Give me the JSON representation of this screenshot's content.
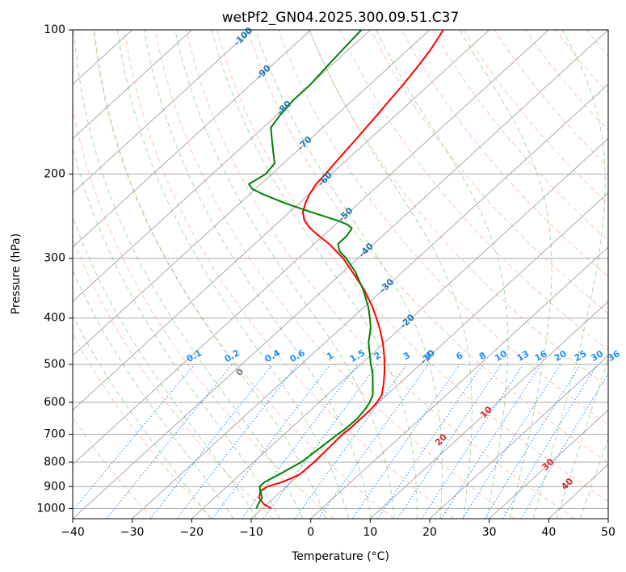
{
  "chart_data": {
    "type": "line",
    "subtype": "skew-t log-p diagram",
    "title": "wetPf2_GN04.2025.300.09.51.C37",
    "xlabel": "Temperature (°C)",
    "ylabel": "Pressure (hPa)",
    "xlim": [
      -40,
      50
    ],
    "ylim": [
      1050,
      100
    ],
    "x_ticks": [
      -40,
      -30,
      -20,
      -10,
      0,
      10,
      20,
      30,
      40,
      50
    ],
    "x_tick_labels": [
      "−40",
      "−30",
      "−20",
      "−10",
      "0",
      "10",
      "20",
      "30",
      "40",
      "50"
    ],
    "y_ticks": [
      100,
      200,
      300,
      400,
      500,
      600,
      700,
      800,
      900,
      1000
    ],
    "y_tick_labels": [
      "100",
      "200",
      "300",
      "400",
      "500",
      "600",
      "700",
      "800",
      "900",
      "1000"
    ],
    "grid": true,
    "colors": {
      "temperature": "#ff0000",
      "dewpoint": "#008000",
      "isotherm": "#aaaaaa",
      "dry_adiabat": "#ff7f50",
      "moist_adiabat": "#2ca02c",
      "mixing_ratio": "#1e90ff",
      "isotherm_label": "#1f77b4",
      "mixing_label": "#1e90ff",
      "moist_label": "#d62728",
      "zero_label": "#808080"
    },
    "series": [
      {
        "name": "Temperature",
        "pressure": [
          1000,
          980,
          950,
          920,
          900,
          880,
          850,
          800,
          750,
          700,
          680,
          650,
          620,
          600,
          580,
          550,
          520,
          500,
          480,
          450,
          420,
          400,
          380,
          350,
          320,
          300,
          280,
          270,
          260,
          250,
          240,
          230,
          220,
          210,
          200,
          190,
          180,
          170,
          160,
          150,
          140,
          130,
          120,
          110,
          100
        ],
        "values": [
          -8.5,
          -10.5,
          -12.5,
          -13.5,
          -13.2,
          -11.5,
          -10.0,
          -9.8,
          -10.0,
          -10.2,
          -10.0,
          -10.0,
          -10.0,
          -10.3,
          -10.8,
          -12.5,
          -14.5,
          -16.0,
          -17.6,
          -20.3,
          -23.5,
          -25.9,
          -28.5,
          -33.0,
          -38.5,
          -42.5,
          -47.5,
          -50.5,
          -53.5,
          -56.0,
          -57.8,
          -59.0,
          -60.0,
          -60.7,
          -61.0,
          -61.4,
          -61.8,
          -62.2,
          -62.7,
          -63.2,
          -63.8,
          -64.4,
          -65.2,
          -66.2,
          -67.7
        ]
      },
      {
        "name": "Dewpoint",
        "pressure": [
          1000,
          980,
          950,
          920,
          900,
          880,
          850,
          800,
          750,
          700,
          680,
          650,
          620,
          600,
          580,
          550,
          520,
          500,
          480,
          450,
          420,
          400,
          380,
          350,
          320,
          300,
          290,
          280,
          270,
          260,
          255,
          250,
          240,
          230,
          220,
          215,
          210,
          200,
          190,
          180,
          170,
          160,
          150,
          140,
          130,
          120,
          110,
          100
        ],
        "values": [
          -11.0,
          -11.5,
          -12.0,
          -13.5,
          -14.5,
          -14.5,
          -13.5,
          -12.0,
          -11.5,
          -11.0,
          -10.7,
          -10.6,
          -11.0,
          -11.5,
          -12.3,
          -14.3,
          -16.5,
          -18.3,
          -20.0,
          -22.7,
          -25.0,
          -27.0,
          -29.2,
          -33.2,
          -38.0,
          -42.0,
          -44.4,
          -46.0,
          -46.0,
          -46.5,
          -48.0,
          -50.5,
          -56.5,
          -62.5,
          -68.0,
          -70.5,
          -72.0,
          -71.0,
          -71.5,
          -73.8,
          -76.2,
          -78.7,
          -79.5,
          -80.0,
          -80.0,
          -80.5,
          -81.0,
          -81.5
        ]
      }
    ],
    "isotherm_labels": [
      "-100",
      "-90",
      "-80",
      "-70",
      "-60",
      "-50",
      "-40",
      "-30",
      "-20",
      "-10"
    ],
    "isotherm_label_values": [
      -100,
      -90,
      -80,
      -70,
      -60,
      -50,
      -40,
      -30,
      -20,
      -10
    ],
    "mixing_ratio_labels": [
      "0.1",
      "0.2",
      "0.4",
      "0.6",
      "1",
      "1.5",
      "2",
      "3",
      "4",
      "6",
      "8",
      "10",
      "13",
      "16",
      "20",
      "25",
      "30",
      "36"
    ],
    "mixing_ratio_values": [
      0.1,
      0.2,
      0.4,
      0.6,
      1,
      1.5,
      2,
      3,
      4,
      6,
      8,
      10,
      13,
      16,
      20,
      25,
      30,
      36
    ],
    "moist_adiabat_labels": [
      "0",
      "10",
      "20",
      "30",
      "40"
    ],
    "moist_adiabat_values": [
      0,
      10,
      20,
      30,
      40
    ]
  }
}
